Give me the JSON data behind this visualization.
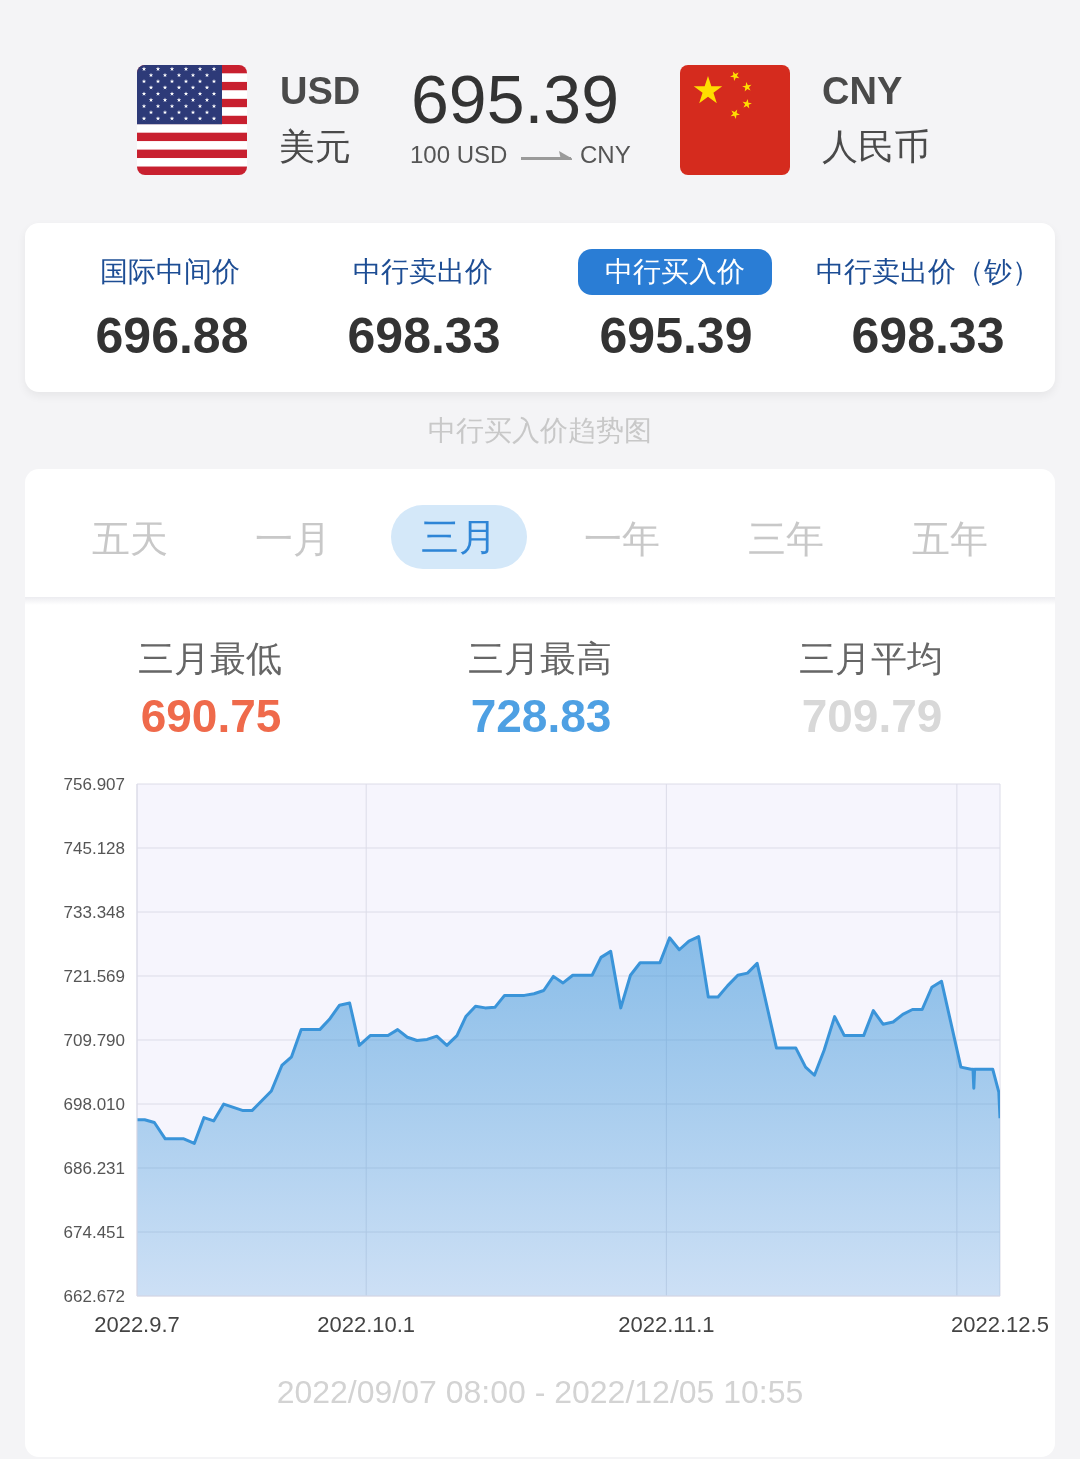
{
  "chart_data": {
    "type": "area",
    "title": "中行买入价趋势图",
    "annotations": [
      "USD",
      "美元",
      "695.39",
      "100 USD",
      "CNY",
      "CNY",
      "人民币",
      "国际中间价",
      "696.88",
      "中行卖出价",
      "698.33",
      "中行买入价",
      "695.39",
      "中行卖出价（钞）",
      "698.33",
      "五天",
      "一月",
      "三月",
      "一年",
      "三年",
      "五年",
      "三月最低",
      "690.75",
      "三月最高",
      "728.83",
      "三月平均",
      "709.79",
      "2022/09/07 08:00 - 2022/12/05 10:55"
    ],
    "x": [
      "2022-09-07T08:00",
      "2022-09-08T03:00",
      "2022-09-09T03:00",
      "2022-09-10T06:00",
      "2022-09-12T04:00",
      "2022-09-13T06:00",
      "2022-09-14T06:00",
      "2022-09-15T06:00",
      "2022-09-16T07:00",
      "2022-09-18T07:00",
      "2022-09-19T05:00",
      "2022-09-21T05:00",
      "2022-09-22T07:00",
      "2022-09-23T07:00",
      "2022-09-24T07:00",
      "2022-09-26T05:00",
      "2022-09-27T05:00",
      "2022-09-28T06:00",
      "2022-09-29T07:00",
      "2022-09-30T07:00",
      "2022-10-01T10:00",
      "2022-10-03T06:00",
      "2022-10-04T06:00",
      "2022-10-05T06:00",
      "2022-10-06T06:00",
      "2022-10-07T07:00",
      "2022-10-08T07:00",
      "2022-10-09T08:00",
      "2022-10-10T09:00",
      "2022-10-11T07:00",
      "2022-10-12T07:00",
      "2022-10-13T07:00",
      "2022-10-14T07:00",
      "2022-10-15T07:00",
      "2022-10-17T08:00",
      "2022-10-18T08:00",
      "2022-10-19T08:00",
      "2022-10-20T08:00",
      "2022-10-21T08:00",
      "2022-10-22T08:00",
      "2022-10-24T08:00",
      "2022-10-25T06:00",
      "2022-10-26T06:00",
      "2022-10-27T07:00",
      "2022-10-28T07:00",
      "2022-10-29T07:00",
      "2022-10-31T08:00",
      "2022-11-01T08:00",
      "2022-11-02T08:00",
      "2022-11-03T08:00",
      "2022-11-04T08:00",
      "2022-11-05T08:00",
      "2022-11-06T08:00",
      "2022-11-07T08:00",
      "2022-11-08T09:00",
      "2022-11-09T09:00",
      "2022-11-10T09:00",
      "2022-11-12T09:00",
      "2022-11-14T09:00",
      "2022-11-15T09:00",
      "2022-11-16T07:00",
      "2022-11-17T07:00",
      "2022-11-18T09:00",
      "2022-11-19T09:00",
      "2022-11-21T09:00",
      "2022-11-22T09:00",
      "2022-11-23T09:00",
      "2022-11-24T10:00",
      "2022-11-25T10:00",
      "2022-11-26T10:00",
      "2022-11-27T10:00",
      "2022-11-28T10:00",
      "2022-11-29T10:00",
      "2022-12-01T10:00",
      "2022-12-02T11:00",
      "2022-12-02T16:00",
      "2022-12-02T18:00",
      "2022-12-02T20:00",
      "2022-12-04T17:00",
      "2022-12-05T08:00",
      "2022-12-05T10:55"
    ],
    "values": [
      695.1,
      695.1,
      694.6,
      691.6,
      691.6,
      690.75,
      695.5,
      694.9,
      698.0,
      696.8,
      696.8,
      700.4,
      705.1,
      706.7,
      711.7,
      711.7,
      713.6,
      716.2,
      716.6,
      708.8,
      710.6,
      710.6,
      711.7,
      710.3,
      709.7,
      709.9,
      710.5,
      708.8,
      710.6,
      714.1,
      716.0,
      715.7,
      715.8,
      718.0,
      718.0,
      718.3,
      718.9,
      721.5,
      720.3,
      721.7,
      721.7,
      725.0,
      726.1,
      715.7,
      721.7,
      724.0,
      724.0,
      728.6,
      726.4,
      728.0,
      728.83,
      717.7,
      717.7,
      719.8,
      721.7,
      722.1,
      723.9,
      708.3,
      708.3,
      704.8,
      703.3,
      707.9,
      714.1,
      710.6,
      710.6,
      715.2,
      712.7,
      713.1,
      714.5,
      715.4,
      715.4,
      719.5,
      720.6,
      704.8,
      704.4,
      704.4,
      700.9,
      704.4,
      704.4,
      700.2,
      695.39
    ],
    "color": "#3a94d9",
    "xlim": [
      "2022-09-07T08:00",
      "2022-12-05T10:55"
    ],
    "xticks": [
      {
        "value": "2022-09-07T08:00",
        "label": "2022.9.7"
      },
      {
        "value": "2022-10-01",
        "label": "2022.10.1"
      },
      {
        "value": "2022-11-01",
        "label": "2022.11.1"
      },
      {
        "value": "2022-12-01",
        "label": null
      },
      {
        "value": "2022-12-05T10:55",
        "label": "2022.12.5"
      }
    ],
    "ylim": [
      662.672,
      756.907
    ],
    "yticks": [
      662.672,
      674.451,
      686.231,
      {
        "value": 698.01,
        "label": "698.010"
      },
      {
        "value": 709.79,
        "label": "709.790"
      },
      721.569,
      733.348,
      745.128,
      756.907
    ],
    "grid": true
  }
}
